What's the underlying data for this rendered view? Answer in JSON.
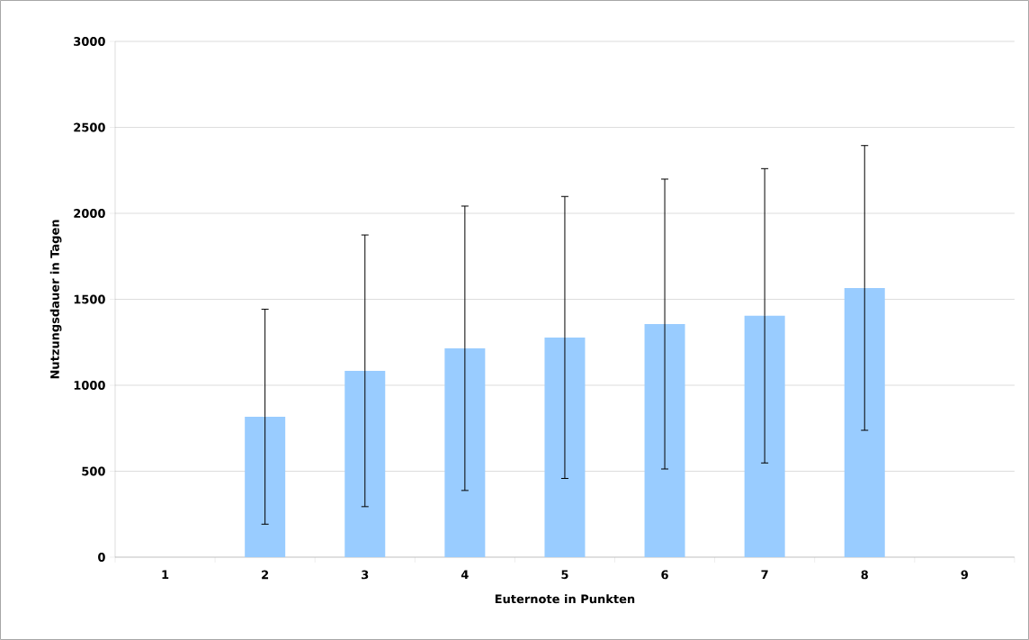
{
  "chart_data": {
    "type": "bar",
    "xlabel": "Euternote in Punkten",
    "ylabel": "Nutzungsdauer in Tagen",
    "categories": [
      "1",
      "2",
      "3",
      "4",
      "5",
      "6",
      "7",
      "8",
      "9"
    ],
    "values": [
      null,
      817,
      1084,
      1215,
      1278,
      1356,
      1404,
      1566,
      null
    ],
    "errors": [
      null,
      625,
      790,
      827,
      820,
      843,
      856,
      828,
      null
    ],
    "color": "#99ccff",
    "ylim": [
      0,
      3000
    ],
    "yticks": [
      0,
      500,
      1000,
      1500,
      2000,
      2500,
      3000
    ],
    "grid": "y"
  }
}
